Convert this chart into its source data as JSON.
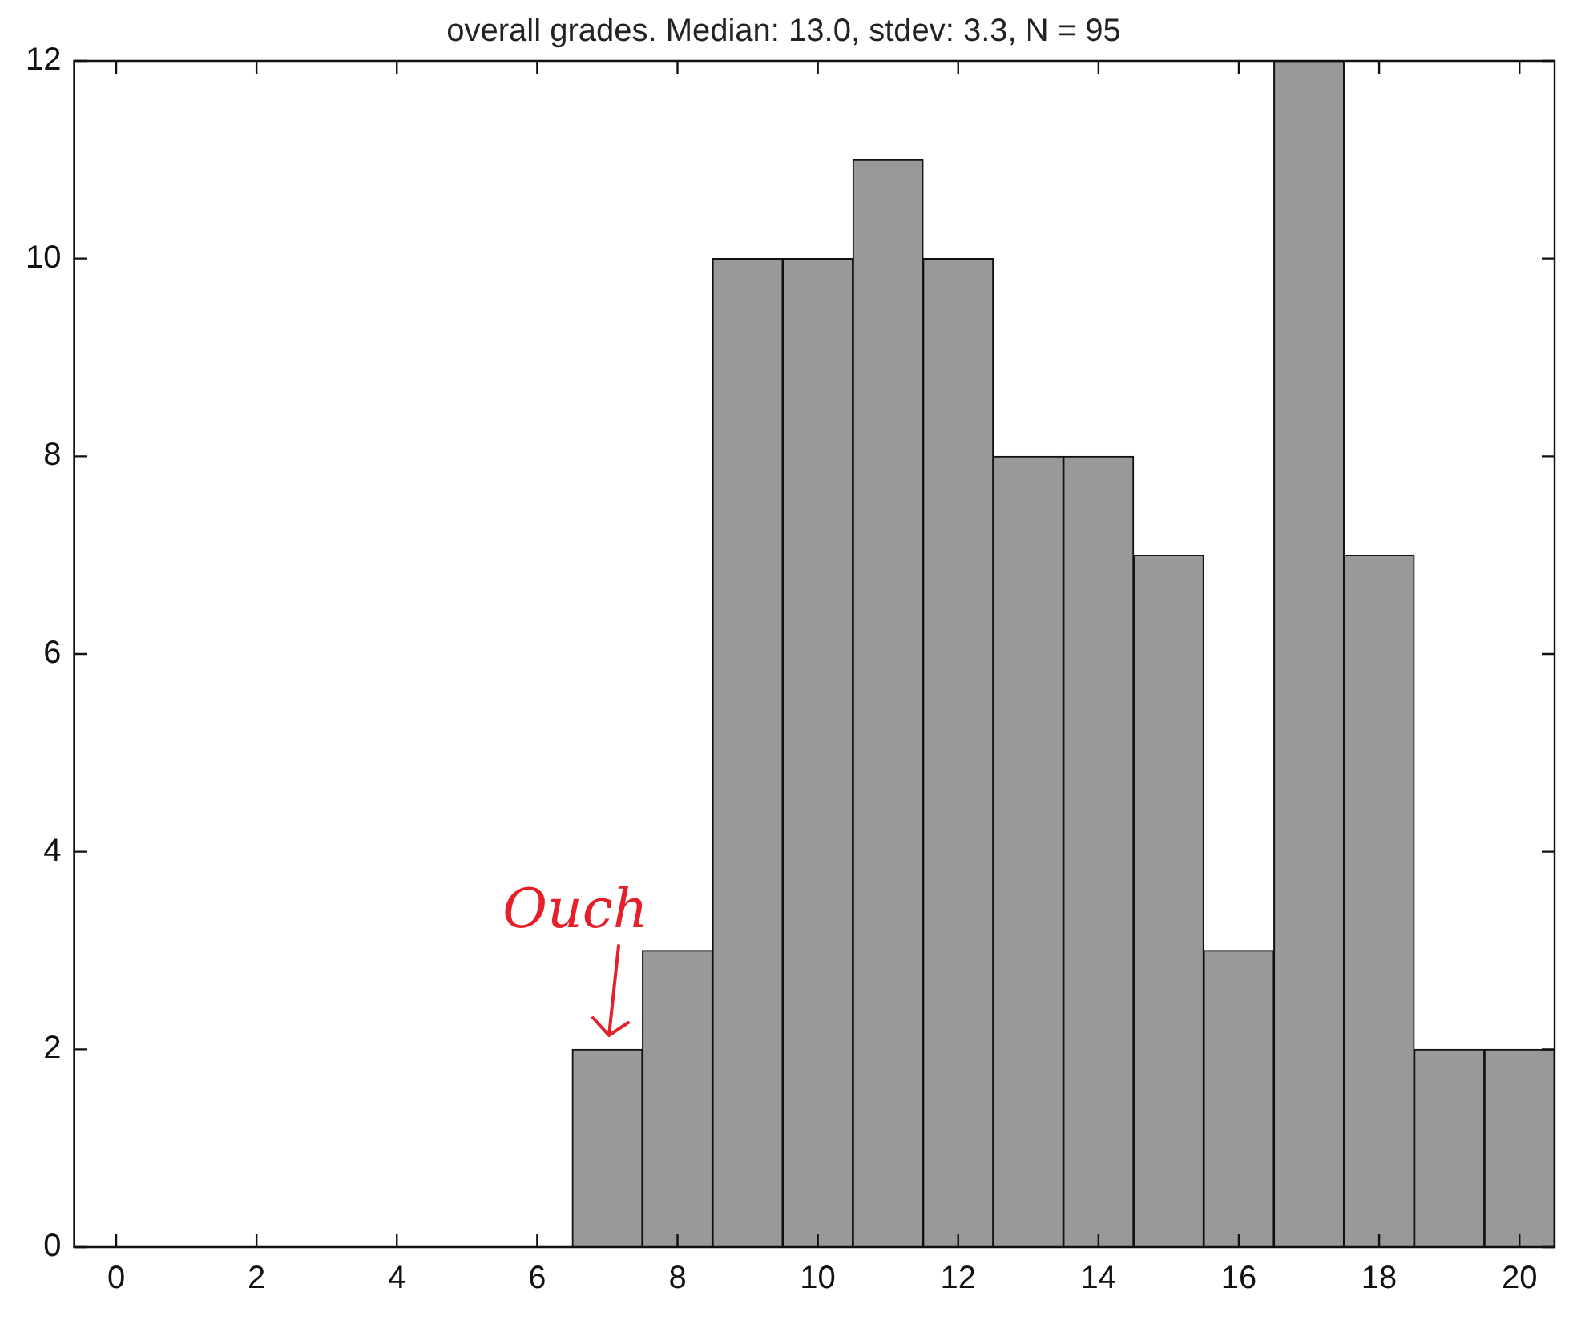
{
  "chart_data": {
    "type": "histogram",
    "title": "overall grades. Median: 13.0, stdev: 3.3, N = 95",
    "bins": [
      6.5,
      7.5,
      8.5,
      9.5,
      10.5,
      11.5,
      12.5,
      13.5,
      14.5,
      15.5,
      16.5,
      17.5,
      18.5,
      19.5,
      20.5
    ],
    "values": [
      2,
      3,
      10,
      10,
      11,
      10,
      8,
      8,
      7,
      3,
      12,
      7,
      2,
      2
    ],
    "color": "#999999",
    "xlim": [
      -0.6,
      20.5
    ],
    "xticks": [
      0,
      2,
      4,
      6,
      8,
      10,
      12,
      14,
      16,
      18,
      20
    ],
    "ylim": [
      0,
      12
    ],
    "yticks": [
      0,
      2,
      4,
      6,
      8,
      10,
      12
    ],
    "grid": false,
    "legend": false,
    "annotations": [
      {
        "text": "Ouch",
        "x": 7,
        "y": 2
      }
    ]
  }
}
